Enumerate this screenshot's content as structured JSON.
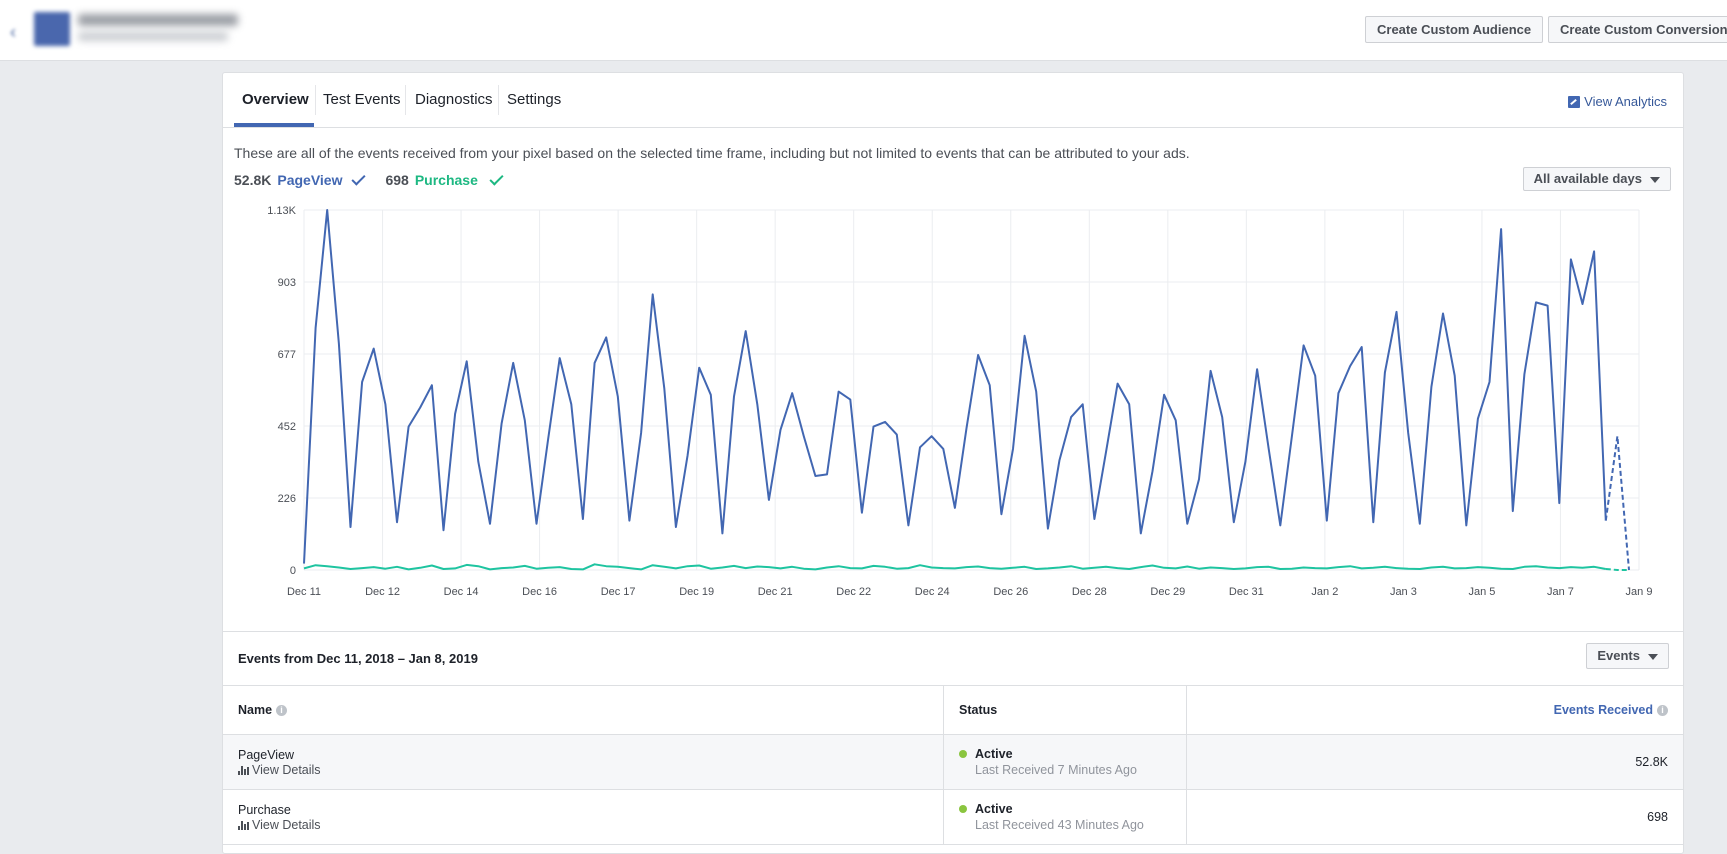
{
  "header": {
    "create_audience": "Create Custom Audience",
    "create_conversion": "Create Custom Conversion"
  },
  "tabs": [
    {
      "label": "Overview",
      "active": true
    },
    {
      "label": "Test Events",
      "active": false
    },
    {
      "label": "Diagnostics",
      "active": false
    },
    {
      "label": "Settings",
      "active": false
    }
  ],
  "view_analytics": "View Analytics",
  "description": "These are all of the events received from your pixel based on the selected time frame, including but not limited to events that can be attributed to your ads.",
  "legend": {
    "pageview_count": "52.8K",
    "pageview_label": "PageView",
    "purchase_count": "698",
    "purchase_label": "Purchase"
  },
  "timeframe_button": "All available days",
  "colors": {
    "pageview": "#4267b2",
    "purchase": "#1ec4a0",
    "accent": "#4267b2"
  },
  "chart_data": {
    "type": "line",
    "y_ticks": [
      "0",
      "226",
      "452",
      "677",
      "903",
      "1.13K"
    ],
    "ylim": [
      0,
      1130
    ],
    "x_ticks": [
      "Dec 11",
      "Dec 12",
      "Dec 14",
      "Dec 16",
      "Dec 17",
      "Dec 19",
      "Dec 21",
      "Dec 22",
      "Dec 24",
      "Dec 26",
      "Dec 28",
      "Dec 29",
      "Dec 31",
      "Jan 2",
      "Jan 3",
      "Jan 5",
      "Jan 7",
      "Jan 9"
    ],
    "grid": true,
    "series": [
      {
        "name": "PageView",
        "values": [
          20,
          760,
          1130,
          710,
          135,
          590,
          695,
          520,
          150,
          450,
          510,
          580,
          125,
          490,
          655,
          340,
          145,
          460,
          650,
          470,
          145,
          410,
          665,
          520,
          160,
          650,
          730,
          545,
          155,
          430,
          865,
          570,
          135,
          360,
          635,
          550,
          115,
          545,
          750,
          520,
          220,
          440,
          555,
          420,
          295,
          300,
          560,
          535,
          180,
          450,
          465,
          425,
          140,
          385,
          420,
          380,
          195,
          445,
          675,
          580,
          175,
          380,
          735,
          560,
          130,
          345,
          480,
          520,
          160,
          370,
          585,
          520,
          115,
          310,
          550,
          470,
          145,
          285,
          625,
          480,
          150,
          340,
          630,
          380,
          140,
          420,
          705,
          610,
          155,
          555,
          640,
          700,
          150,
          620,
          810,
          430,
          145,
          575,
          805,
          610,
          140,
          475,
          590,
          1070,
          185,
          615,
          840,
          830,
          210,
          975,
          835,
          1000,
          155
        ]
      },
      {
        "name": "Purchase",
        "values": [
          5,
          15,
          12,
          8,
          3,
          6,
          9,
          4,
          10,
          2,
          7,
          14,
          3,
          5,
          16,
          12,
          2,
          6,
          8,
          13,
          4,
          7,
          9,
          3,
          2,
          18,
          12,
          10,
          6,
          2,
          15,
          10,
          5,
          12,
          14,
          4,
          8,
          13,
          6,
          11,
          9,
          5,
          10,
          4,
          2,
          8,
          12,
          6,
          5,
          13,
          10,
          4,
          6,
          15,
          8,
          6,
          5,
          9,
          11,
          6,
          4,
          7,
          10,
          3,
          5,
          8,
          12,
          4,
          7,
          10,
          6,
          3,
          9,
          14,
          7,
          5,
          11,
          4,
          8,
          6,
          3,
          5,
          9,
          10,
          3,
          4,
          8,
          6,
          5,
          9,
          12,
          5,
          7,
          10,
          6,
          4,
          3,
          8,
          10,
          5,
          6,
          9,
          7,
          4,
          3,
          10,
          12,
          8,
          6,
          9,
          7,
          10,
          3
        ]
      }
    ],
    "partial_pageview": [
      155,
      420,
      0
    ],
    "partial_purchase": [
      3,
      0,
      0
    ]
  },
  "events_section": {
    "title": "Events from Dec 11, 2018 – Jan 8, 2019",
    "dropdown": "Events",
    "columns": {
      "name": "Name",
      "status": "Status",
      "received": "Events Received"
    },
    "rows": [
      {
        "name": "PageView",
        "link": "View Details",
        "status": "Active",
        "last": "Last Received 7 Minutes Ago",
        "count": "52.8K"
      },
      {
        "name": "Purchase",
        "link": "View Details",
        "status": "Active",
        "last": "Last Received 43 Minutes Ago",
        "count": "698"
      }
    ]
  }
}
